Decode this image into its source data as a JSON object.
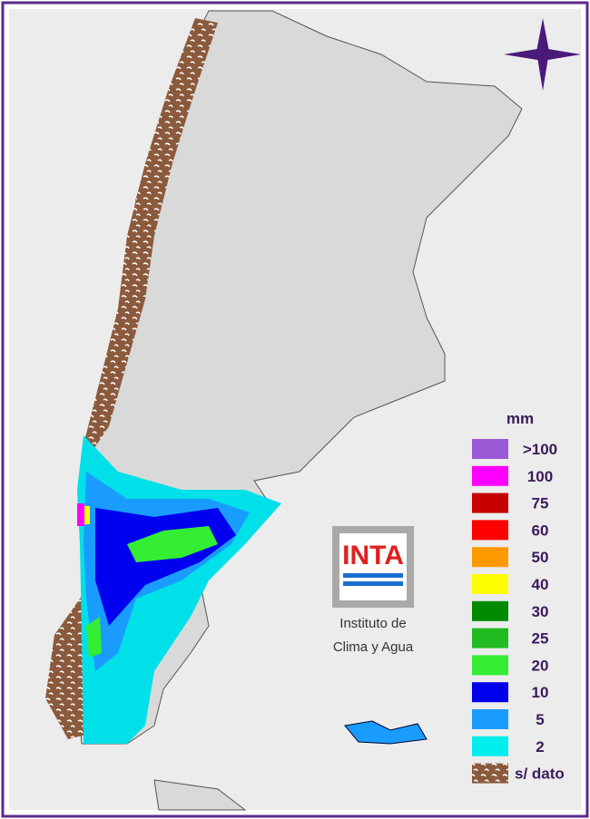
{
  "legend": {
    "title": "mm",
    "items": [
      {
        "label": ">100",
        "color": "#9b59d6"
      },
      {
        "label": "100",
        "color": "#ff00ff"
      },
      {
        "label": "75",
        "color": "#c80000"
      },
      {
        "label": "60",
        "color": "#ff0000"
      },
      {
        "label": "50",
        "color": "#ff9900"
      },
      {
        "label": "40",
        "color": "#ffff00"
      },
      {
        "label": "30",
        "color": "#008a00"
      },
      {
        "label": "25",
        "color": "#22bb22"
      },
      {
        "label": "20",
        "color": "#33ee33"
      },
      {
        "label": "10",
        "color": "#0000ee"
      },
      {
        "label": "5",
        "color": "#1a9cff"
      },
      {
        "label": "2",
        "color": "#00eeee"
      },
      {
        "label": "s/ dato",
        "color": "#8b5a3c"
      }
    ]
  },
  "logo": {
    "name": "INTA",
    "line1": "Instituto de",
    "line2": "Clima y Agua"
  }
}
